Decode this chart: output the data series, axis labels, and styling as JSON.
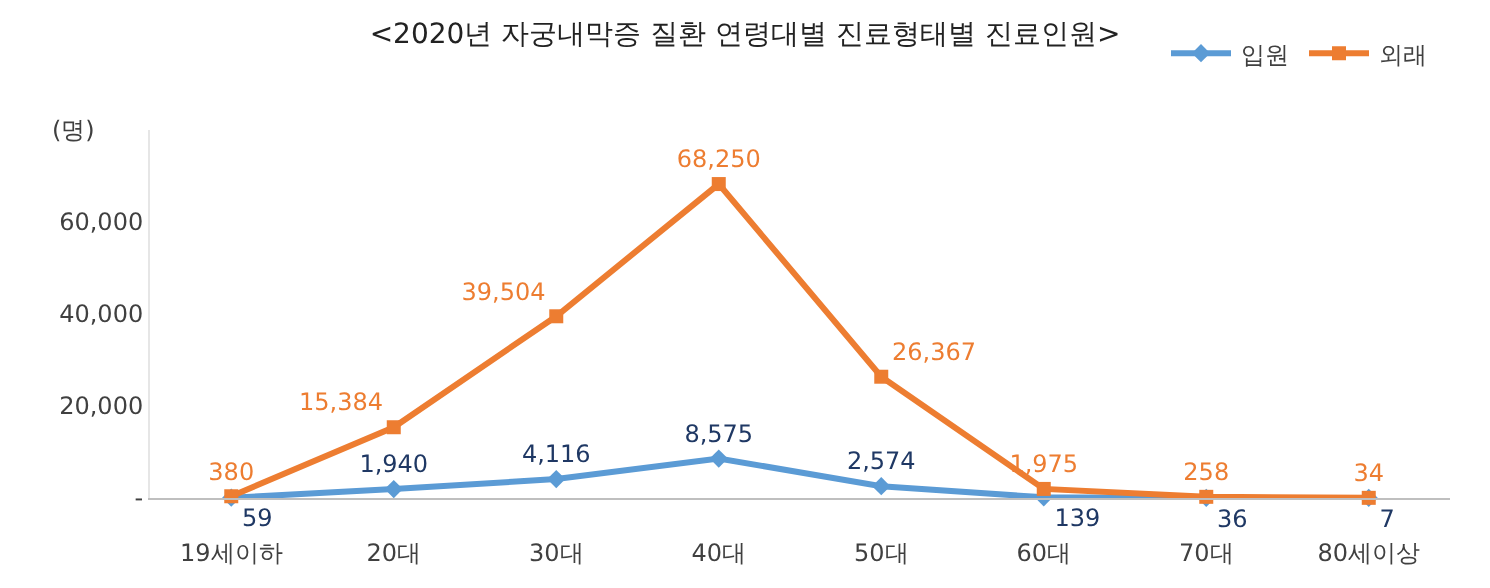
{
  "chart_data": {
    "type": "line",
    "title": "<2020년 자궁내막증 질환 연령대별 진료형태별 진료인원>",
    "ylabel": "(명)",
    "categories": [
      "19세이하",
      "20대",
      "30대",
      "40대",
      "50대",
      "60대",
      "70대",
      "80세이상"
    ],
    "series": [
      {
        "name": "입원",
        "color": "#5b9bd5",
        "marker": "diamond",
        "values": [
          59,
          1940,
          4116,
          8575,
          2574,
          139,
          36,
          7
        ],
        "value_labels": [
          "59",
          "1,940",
          "4,116",
          "8,575",
          "2,574",
          "139",
          "36",
          "7"
        ]
      },
      {
        "name": "외래",
        "color": "#ed7d31",
        "marker": "square",
        "values": [
          380,
          15384,
          39504,
          68250,
          26367,
          1975,
          258,
          34
        ],
        "value_labels": [
          "380",
          "15,384",
          "39,504",
          "68,250",
          "26,367",
          "1,975",
          "258",
          "34"
        ]
      }
    ],
    "ylim": [
      0,
      80000
    ],
    "yticks": [
      {
        "value": 0,
        "label": "-"
      },
      {
        "value": 20000,
        "label": "20,000"
      },
      {
        "value": 40000,
        "label": "40,000"
      },
      {
        "value": 60000,
        "label": "60,000"
      }
    ],
    "legend": "top right"
  }
}
